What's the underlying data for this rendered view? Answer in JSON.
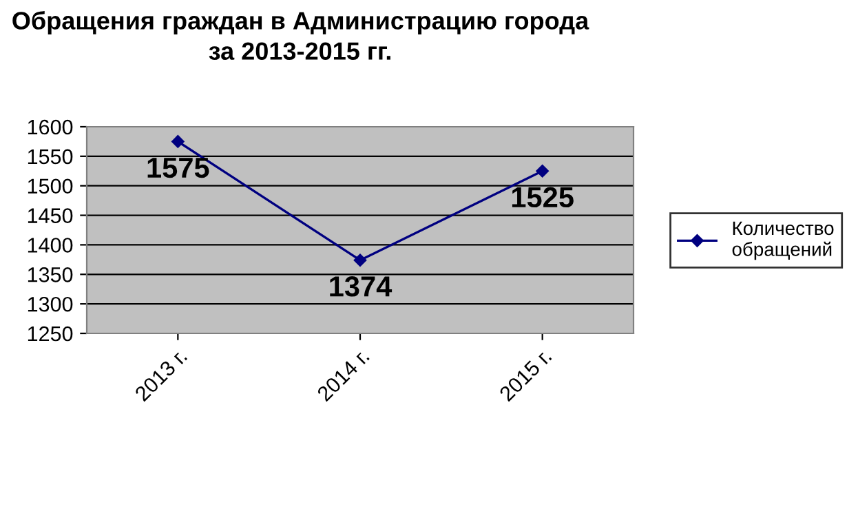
{
  "chart_data": {
    "type": "line",
    "title": "Обращения граждан в Администрацию города\nза 2013-2015 гг.",
    "categories": [
      "2013 г.",
      "2014 г.",
      "2015 г."
    ],
    "series": [
      {
        "name": "Количество\nобращений",
        "color": "#000080",
        "values": [
          1575,
          1374,
          1525
        ]
      }
    ],
    "ylim": [
      1250,
      1600
    ],
    "yticks": [
      1250,
      1300,
      1350,
      1400,
      1450,
      1500,
      1550,
      1600
    ],
    "grid": "y",
    "legend": "right",
    "marker": "diamond",
    "line_style": "solid",
    "data_labels": true
  }
}
